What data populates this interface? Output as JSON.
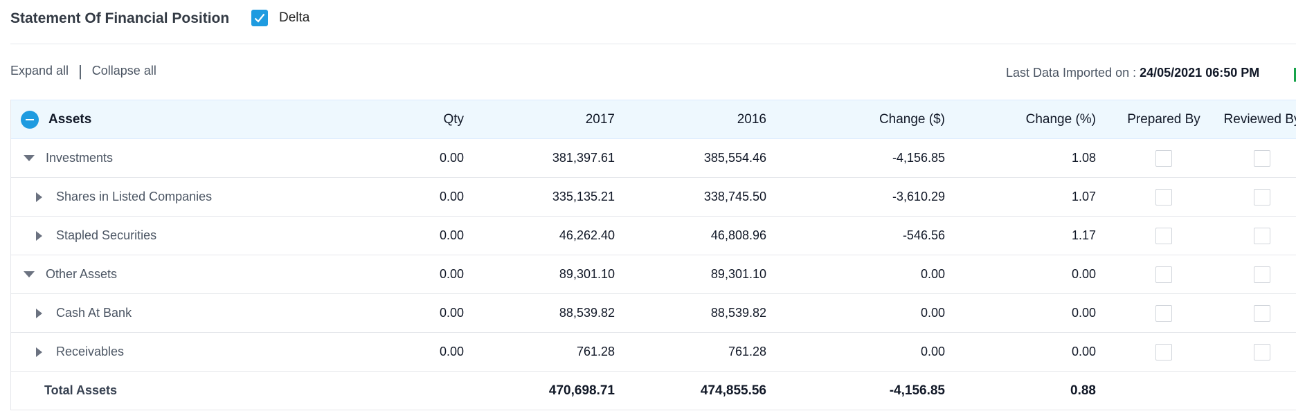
{
  "header": {
    "title": "Statement Of Financial Position",
    "delta_label": "Delta",
    "delta_checked": true
  },
  "toolbar": {
    "expand_all": "Expand all",
    "separator": "|",
    "collapse_all": "Collapse all",
    "imported_label": "Last Data Imported on : ",
    "imported_value": "24/05/2021 06:50 PM"
  },
  "table": {
    "section_label": "Assets",
    "columns": [
      "Qty",
      "2017",
      "2016",
      "Change ($)",
      "Change (%)",
      "Prepared By",
      "Reviewed By"
    ],
    "rows": [
      {
        "label": "Investments",
        "level": 1,
        "qty": "0.00",
        "y2017": "381,397.61",
        "y2016": "385,554.46",
        "chg": "-4,156.85",
        "pct": "1.08"
      },
      {
        "label": "Shares in Listed Companies",
        "level": 2,
        "qty": "0.00",
        "y2017": "335,135.21",
        "y2016": "338,745.50",
        "chg": "-3,610.29",
        "pct": "1.07"
      },
      {
        "label": "Stapled Securities",
        "level": 2,
        "qty": "0.00",
        "y2017": "46,262.40",
        "y2016": "46,808.96",
        "chg": "-546.56",
        "pct": "1.17"
      },
      {
        "label": "Other Assets",
        "level": 1,
        "qty": "0.00",
        "y2017": "89,301.10",
        "y2016": "89,301.10",
        "chg": "0.00",
        "pct": "0.00"
      },
      {
        "label": "Cash At Bank",
        "level": 2,
        "qty": "0.00",
        "y2017": "88,539.82",
        "y2016": "88,539.82",
        "chg": "0.00",
        "pct": "0.00"
      },
      {
        "label": "Receivables",
        "level": 2,
        "qty": "0.00",
        "y2017": "761.28",
        "y2016": "761.28",
        "chg": "0.00",
        "pct": "0.00"
      }
    ],
    "total": {
      "label": "Total Assets",
      "y2017": "470,698.71",
      "y2016": "474,855.56",
      "chg": "-4,156.85",
      "pct": "0.88"
    }
  },
  "colors": {
    "accent": "#1e9be0",
    "header_bg": "#eef8fe",
    "edge_marker": "#16a34a"
  }
}
